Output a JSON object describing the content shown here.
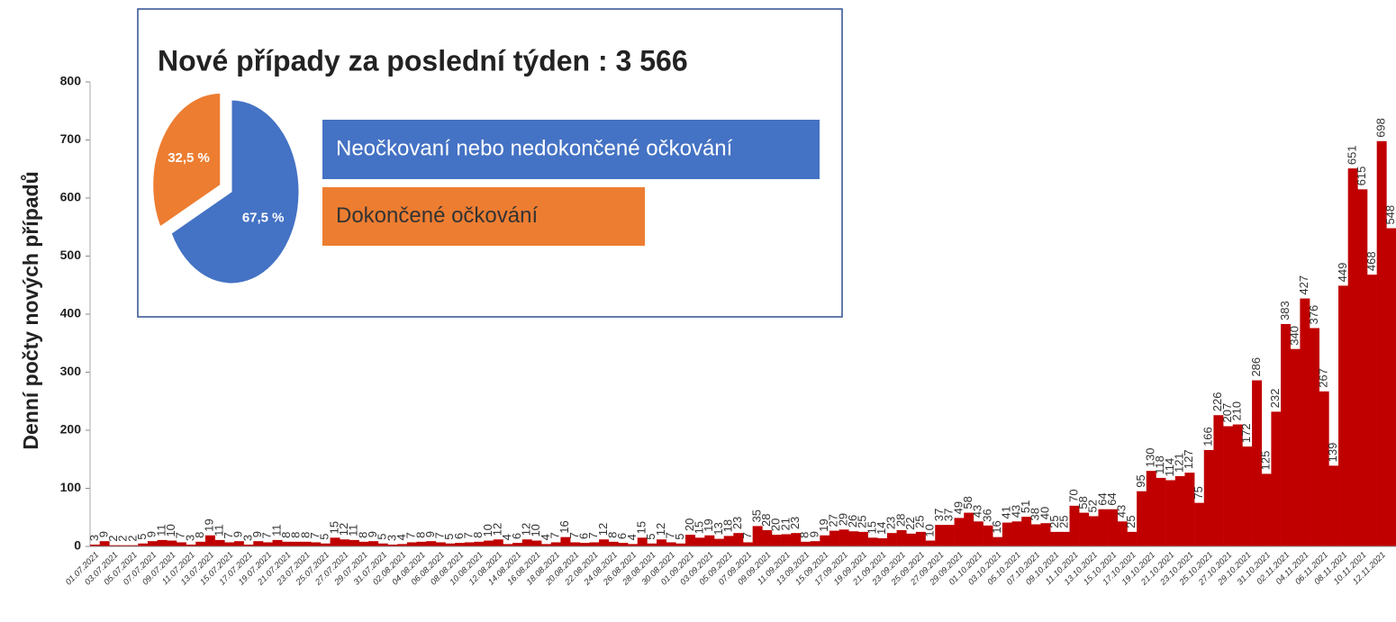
{
  "chart_data": [
    {
      "type": "bar",
      "y_label": "Denní počty nových případů",
      "color": "#c00000",
      "ylim": [
        0,
        800
      ],
      "yticks": [
        0,
        100,
        200,
        300,
        400,
        500,
        600,
        700,
        800
      ],
      "categories": [
        "01.07.2021",
        null,
        "03.07.2021",
        null,
        "05.07.2021",
        null,
        "07.07.2021",
        null,
        "09.07.2021",
        null,
        "11.07.2021",
        null,
        "13.07.2021",
        null,
        "15.07.2021",
        null,
        "17.07.2021",
        null,
        "19.07.2021",
        null,
        "21.07.2021",
        null,
        "23.07.2021",
        null,
        "25.07.2021",
        null,
        "27.07.2021",
        null,
        "29.07.2021",
        null,
        "31.07.2021",
        null,
        "02.08.2021",
        null,
        "04.08.2021",
        null,
        "06.08.2021",
        null,
        "08.08.2021",
        null,
        "10.08.2021",
        null,
        "12.08.2021",
        null,
        "14.08.2021",
        null,
        "16.08.2021",
        null,
        "18.08.2021",
        null,
        "20.08.2021",
        null,
        "22.08.2021",
        null,
        "24.08.2021",
        null,
        "26.08.2021",
        null,
        "28.08.2021",
        null,
        "30.08.2021",
        null,
        "01.09.2021",
        null,
        "03.09.2021",
        null,
        "05.09.2021",
        null,
        "07.09.2021",
        null,
        "09.09.2021",
        null,
        "11.09.2021",
        null,
        "13.09.2021",
        null,
        "15.09.2021",
        null,
        "17.09.2021",
        null,
        "19.09.2021",
        null,
        "21.09.2021",
        null,
        "23.09.2021",
        null,
        "25.09.2021",
        null,
        "27.09.2021",
        null,
        "29.09.2021",
        null,
        "01.10.2021",
        null,
        "03.10.2021",
        null,
        "05.10.2021",
        null,
        "07.10.2021",
        null,
        "09.10.2021",
        null,
        "11.10.2021",
        null,
        "13.10.2021",
        null,
        "15.10.2021",
        null,
        "17.10.2021",
        null,
        "19.10.2021",
        null,
        "21.10.2021",
        null,
        "23.10.2021",
        null,
        "25.10.2021",
        null,
        "27.10.2021",
        null,
        "29.10.2021",
        null,
        "31.10.2021",
        null,
        "02.11.2021",
        null,
        "04.11.2021",
        null,
        "06.11.2021",
        null,
        "08.11.2021",
        null,
        "10.11.2021",
        null,
        "12.11.2021",
        null
      ],
      "values": [
        3,
        9,
        2,
        2,
        2,
        5,
        9,
        11,
        10,
        7,
        3,
        8,
        19,
        11,
        7,
        9,
        3,
        9,
        7,
        11,
        8,
        8,
        8,
        7,
        5,
        15,
        12,
        11,
        8,
        9,
        5,
        3,
        4,
        7,
        8,
        9,
        7,
        5,
        6,
        7,
        8,
        10,
        12,
        4,
        6,
        12,
        10,
        4,
        7,
        16,
        7,
        6,
        7,
        12,
        8,
        6,
        4,
        15,
        5,
        12,
        7,
        5,
        20,
        15,
        19,
        13,
        18,
        23,
        7,
        35,
        28,
        20,
        21,
        23,
        8,
        9,
        19,
        27,
        29,
        26,
        25,
        15,
        14,
        23,
        28,
        22,
        25,
        10,
        37,
        37,
        49,
        58,
        43,
        36,
        16,
        41,
        43,
        51,
        38,
        40,
        25,
        25,
        70,
        58,
        52,
        64,
        64,
        43,
        25,
        95,
        130,
        118,
        114,
        121,
        127,
        75,
        166,
        226,
        207,
        210,
        172,
        286,
        125,
        232,
        383,
        340,
        427,
        376,
        267,
        139,
        449,
        651,
        615,
        468,
        698,
        548
      ]
    },
    {
      "type": "pie",
      "title": "Nové případy za poslední týden : 3 566",
      "labels": [
        "Neočkovaní nebo nedokončené očkování",
        "Dokončené očkování"
      ],
      "values": [
        67.5,
        32.5
      ],
      "value_labels": [
        "67,5 %",
        "32,5 %"
      ],
      "colors": [
        "#4472c4",
        "#ed7d31"
      ]
    }
  ]
}
